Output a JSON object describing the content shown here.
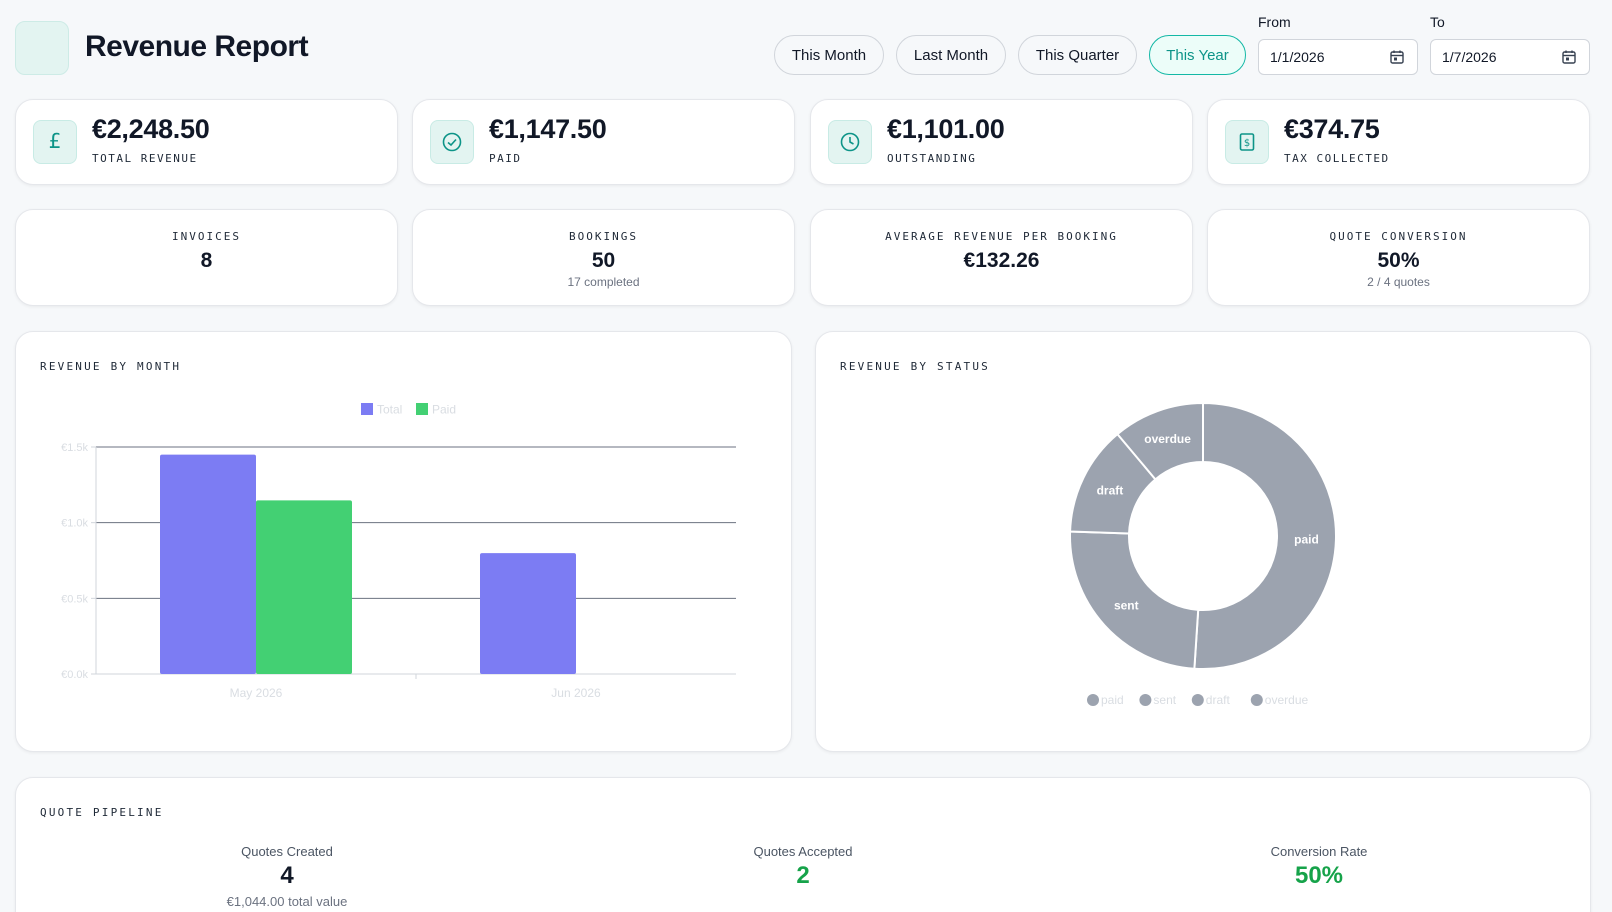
{
  "header": {
    "title": "Revenue Report"
  },
  "ranges": [
    {
      "label": "This Month",
      "active": false
    },
    {
      "label": "Last Month",
      "active": false
    },
    {
      "label": "This Quarter",
      "active": false
    },
    {
      "label": "This Year",
      "active": true
    }
  ],
  "dates": {
    "from_label": "From",
    "from_value": "1/1/2026",
    "to_label": "To",
    "to_value": "1/7/2026"
  },
  "stats": [
    {
      "value": "€2,248.50",
      "label": "TOTAL REVENUE",
      "icon": "pound-icon"
    },
    {
      "value": "€1,147.50",
      "label": "PAID",
      "icon": "check-circle-icon"
    },
    {
      "value": "€1,101.00",
      "label": "OUTSTANDING",
      "icon": "clock-icon"
    },
    {
      "value": "€374.75",
      "label": "TAX COLLECTED",
      "icon": "receipt-icon"
    }
  ],
  "kpis": [
    {
      "label": "INVOICES",
      "value": "8",
      "sub": ""
    },
    {
      "label": "BOOKINGS",
      "value": "50",
      "sub": "17 completed"
    },
    {
      "label": "AVERAGE REVENUE PER BOOKING",
      "value": "€132.26",
      "sub": ""
    },
    {
      "label": "QUOTE CONVERSION",
      "value": "50%",
      "sub": "2 / 4 quotes"
    }
  ],
  "revenue_by_month": {
    "section_title": "REVENUE BY MONTH"
  },
  "revenue_by_status": {
    "section_title": "REVENUE BY STATUS"
  },
  "chart_data": [
    {
      "type": "bar",
      "title": "",
      "categories": [
        "May 2026",
        "Jun 2026"
      ],
      "series": [
        {
          "name": "Total",
          "values": [
            1450,
            798.5
          ],
          "color": "#7c7cf3"
        },
        {
          "name": "Paid",
          "values": [
            1147.5,
            0
          ],
          "color": "#43d073"
        }
      ],
      "ylim": [
        0,
        1500
      ],
      "yticks": [
        "€0.0k",
        "€0.5k",
        "€1.0k",
        "€1.5k"
      ],
      "grid": true,
      "legend": "top-center"
    },
    {
      "type": "pie",
      "title": "",
      "labels": [
        "paid",
        "sent",
        "draft",
        "overdue"
      ],
      "values": [
        1147.5,
        551,
        300,
        250
      ],
      "color": "#9ca3af",
      "legend": "bottom-center"
    }
  ],
  "pipeline": {
    "section_title": "QUOTE PIPELINE",
    "created_label": "Quotes Created",
    "created_value": "4",
    "created_sub": "€1,044.00 total value",
    "accepted_label": "Quotes Accepted",
    "accepted_value": "2",
    "rate_label": "Conversion Rate",
    "rate_value": "50%",
    "accent": "#16a34a"
  }
}
